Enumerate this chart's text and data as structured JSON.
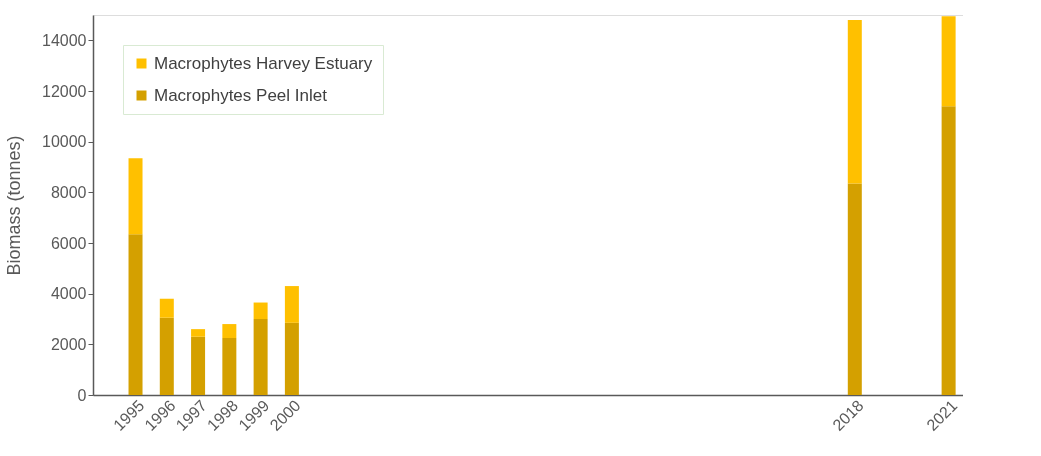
{
  "chart_data": {
    "type": "bar",
    "stacked": true,
    "ylabel": "Biomass (tonnes)",
    "x": [
      1995,
      1996,
      1997,
      1998,
      1999,
      2000,
      2018,
      2021
    ],
    "series": [
      {
        "name": "Macrophytes Peel Inlet",
        "color": "#d4a000",
        "values": [
          6350,
          3050,
          2300,
          2250,
          3000,
          2850,
          8350,
          11400
        ]
      },
      {
        "name": "Macrophytes Harvey Estuary",
        "color": "#ffc000",
        "values": [
          3000,
          750,
          300,
          550,
          650,
          1450,
          6450,
          3550
        ]
      }
    ],
    "xlim": [
      1993.8,
      2021.3
    ],
    "xticks": [
      1995,
      1996,
      1997,
      1998,
      1999,
      2000,
      2018,
      2021
    ],
    "ylim": [
      0,
      15000
    ],
    "yticks": [
      0,
      2000,
      4000,
      6000,
      8000,
      10000,
      12000,
      14000
    ],
    "grid": false,
    "legend": "top left"
  }
}
